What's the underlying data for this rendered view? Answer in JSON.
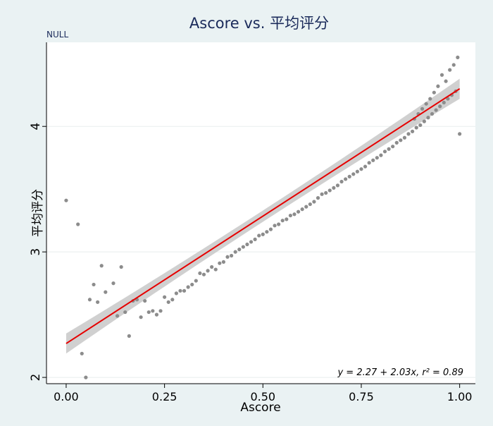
{
  "chart_data": {
    "type": "scatter",
    "title": "Ascore vs. 平均评分",
    "note": "NULL",
    "xlabel": "Ascore",
    "ylabel": "平均评分",
    "xlim": [
      -0.05,
      1.04
    ],
    "ylim": [
      1.95,
      4.67
    ],
    "xticks": [
      0,
      0.25,
      0.5,
      0.75,
      1
    ],
    "xtick_labels": [
      "0.00",
      "0.25",
      "0.50",
      "0.75",
      "1.00"
    ],
    "yticks": [
      2,
      3,
      4
    ],
    "ytick_labels": [
      "2",
      "3",
      "4"
    ],
    "grid": true,
    "fit": {
      "intercept": 2.27,
      "slope": 2.03,
      "equation": "y = 2.27 + 2.03x,  r² = 0.89"
    },
    "colors": {
      "points": "#8c8c8c",
      "fit_line": "#e60000",
      "band": "#c8c8c8",
      "title": "#1a2a5a",
      "background": "#eaf2f3"
    },
    "series": [
      {
        "values": [
          [
            0.0,
            3.41
          ],
          [
            0.03,
            3.22
          ],
          [
            0.04,
            2.19
          ],
          [
            0.05,
            2.0
          ],
          [
            0.06,
            2.62
          ],
          [
            0.07,
            2.74
          ],
          [
            0.08,
            2.6
          ],
          [
            0.09,
            2.89
          ],
          [
            0.1,
            2.68
          ],
          [
            0.12,
            2.75
          ],
          [
            0.13,
            2.49
          ],
          [
            0.14,
            2.88
          ],
          [
            0.15,
            2.52
          ],
          [
            0.16,
            2.33
          ],
          [
            0.17,
            2.61
          ],
          [
            0.18,
            2.62
          ],
          [
            0.19,
            2.48
          ],
          [
            0.2,
            2.61
          ],
          [
            0.21,
            2.52
          ],
          [
            0.22,
            2.53
          ],
          [
            0.23,
            2.5
          ],
          [
            0.24,
            2.53
          ],
          [
            0.25,
            2.64
          ],
          [
            0.26,
            2.6
          ],
          [
            0.27,
            2.62
          ],
          [
            0.28,
            2.67
          ],
          [
            0.29,
            2.69
          ],
          [
            0.3,
            2.69
          ],
          [
            0.31,
            2.72
          ],
          [
            0.32,
            2.74
          ],
          [
            0.33,
            2.77
          ],
          [
            0.34,
            2.83
          ],
          [
            0.35,
            2.82
          ],
          [
            0.36,
            2.85
          ],
          [
            0.37,
            2.88
          ],
          [
            0.38,
            2.86
          ],
          [
            0.39,
            2.91
          ],
          [
            0.4,
            2.92
          ],
          [
            0.41,
            2.96
          ],
          [
            0.42,
            2.97
          ],
          [
            0.43,
            3.0
          ],
          [
            0.44,
            3.02
          ],
          [
            0.45,
            3.04
          ],
          [
            0.46,
            3.06
          ],
          [
            0.47,
            3.08
          ],
          [
            0.48,
            3.1
          ],
          [
            0.49,
            3.13
          ],
          [
            0.5,
            3.14
          ],
          [
            0.51,
            3.16
          ],
          [
            0.52,
            3.18
          ],
          [
            0.53,
            3.21
          ],
          [
            0.54,
            3.22
          ],
          [
            0.55,
            3.25
          ],
          [
            0.56,
            3.26
          ],
          [
            0.57,
            3.29
          ],
          [
            0.58,
            3.3
          ],
          [
            0.59,
            3.32
          ],
          [
            0.6,
            3.34
          ],
          [
            0.61,
            3.36
          ],
          [
            0.62,
            3.38
          ],
          [
            0.63,
            3.4
          ],
          [
            0.64,
            3.43
          ],
          [
            0.65,
            3.46
          ],
          [
            0.66,
            3.47
          ],
          [
            0.67,
            3.49
          ],
          [
            0.68,
            3.51
          ],
          [
            0.69,
            3.53
          ],
          [
            0.7,
            3.56
          ],
          [
            0.71,
            3.58
          ],
          [
            0.72,
            3.6
          ],
          [
            0.73,
            3.62
          ],
          [
            0.74,
            3.64
          ],
          [
            0.75,
            3.66
          ],
          [
            0.76,
            3.68
          ],
          [
            0.77,
            3.71
          ],
          [
            0.78,
            3.73
          ],
          [
            0.79,
            3.75
          ],
          [
            0.8,
            3.77
          ],
          [
            0.81,
            3.8
          ],
          [
            0.82,
            3.82
          ],
          [
            0.83,
            3.84
          ],
          [
            0.84,
            3.87
          ],
          [
            0.85,
            3.89
          ],
          [
            0.86,
            3.91
          ],
          [
            0.87,
            3.94
          ],
          [
            0.88,
            3.96
          ],
          [
            0.89,
            3.99
          ],
          [
            0.9,
            4.01
          ],
          [
            0.91,
            4.04
          ],
          [
            0.92,
            4.07
          ],
          [
            0.93,
            4.1
          ],
          [
            0.94,
            4.13
          ],
          [
            0.95,
            4.16
          ],
          [
            0.96,
            4.19
          ],
          [
            0.97,
            4.22
          ],
          [
            0.98,
            4.25
          ],
          [
            0.99,
            4.28
          ],
          [
            1.0,
            3.94
          ],
          [
            0.955,
            4.41
          ],
          [
            0.965,
            4.36
          ],
          [
            0.975,
            4.45
          ],
          [
            0.985,
            4.49
          ],
          [
            0.995,
            4.55
          ],
          [
            0.945,
            4.32
          ],
          [
            0.935,
            4.27
          ],
          [
            0.925,
            4.22
          ],
          [
            0.915,
            4.18
          ],
          [
            0.905,
            4.14
          ],
          [
            0.895,
            4.1
          ],
          [
            0.885,
            4.06
          ]
        ]
      }
    ]
  }
}
